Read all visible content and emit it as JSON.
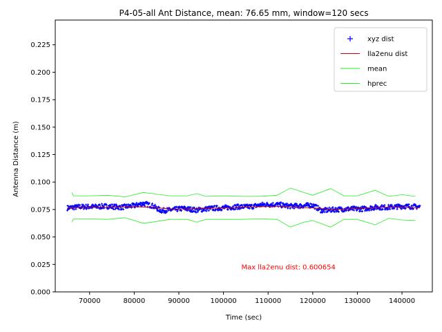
{
  "chart_data": {
    "type": "line",
    "title": "P4-05-all Ant Distance, mean: 76.65 mm, window=120 secs",
    "xlabel": "Time (sec)",
    "ylabel": "Antenna Distance (m)",
    "xlim": [
      62300,
      146800
    ],
    "ylim": [
      0.0,
      0.2475
    ],
    "xticks": [
      70000,
      80000,
      90000,
      100000,
      110000,
      120000,
      130000,
      140000
    ],
    "xtick_labels": [
      "70000",
      "80000",
      "90000",
      "100000",
      "110000",
      "120000",
      "130000",
      "140000"
    ],
    "yticks": [
      0.0,
      0.025,
      0.05,
      0.075,
      0.1,
      0.125,
      0.15,
      0.175,
      0.2,
      0.225
    ],
    "ytick_labels": [
      "0.000",
      "0.025",
      "0.050",
      "0.075",
      "0.100",
      "0.125",
      "0.150",
      "0.175",
      "0.200",
      "0.225"
    ],
    "grid": false,
    "legend_position": "top-right",
    "series": [
      {
        "name": "xyz dist",
        "style": "markers",
        "marker": "+",
        "color": "#0000ff",
        "x": [
          65000,
          68000,
          71000,
          74000,
          77000,
          80000,
          82000,
          84000,
          86000,
          88000,
          91000,
          94000,
          97000,
          100000,
          103000,
          106000,
          109000,
          112000,
          115000,
          118000,
          120000,
          122000,
          125000,
          128000,
          131000,
          134000,
          137000,
          140000,
          144000
        ],
        "values": [
          0.0765,
          0.0775,
          0.0775,
          0.078,
          0.077,
          0.0785,
          0.0805,
          0.0785,
          0.074,
          0.0745,
          0.076,
          0.0745,
          0.076,
          0.0765,
          0.0775,
          0.0775,
          0.0795,
          0.0795,
          0.078,
          0.0785,
          0.079,
          0.074,
          0.075,
          0.0755,
          0.0755,
          0.077,
          0.077,
          0.078,
          0.0775
        ]
      },
      {
        "name": "lla2enu dist",
        "style": "line",
        "color": "#cc0000",
        "x": [
          65000,
          70000,
          75000,
          80000,
          84000,
          88000,
          92000,
          96000,
          100000,
          104000,
          108000,
          112000,
          116000,
          120000,
          124000,
          128000,
          132000,
          136000,
          140000,
          144000
        ],
        "values": [
          0.0765,
          0.077,
          0.077,
          0.0775,
          0.077,
          0.0755,
          0.0755,
          0.076,
          0.0765,
          0.077,
          0.0775,
          0.078,
          0.077,
          0.0765,
          0.075,
          0.0755,
          0.0765,
          0.077,
          0.077,
          0.0765
        ]
      },
      {
        "name": "mean",
        "style": "line",
        "color": "#22ee22",
        "x": [
          66000,
          66400,
          70000,
          74000,
          78000,
          82000,
          84000,
          88000,
          92000,
          94000,
          96000,
          100000,
          104000,
          108000,
          112000,
          115000,
          118000,
          120000,
          124000,
          127000,
          130000,
          134000,
          137000,
          140000,
          143000
        ],
        "values": [
          0.0905,
          0.0875,
          0.0875,
          0.088,
          0.0865,
          0.0905,
          0.0895,
          0.0875,
          0.0875,
          0.0895,
          0.087,
          0.0875,
          0.087,
          0.087,
          0.088,
          0.0945,
          0.0905,
          0.088,
          0.094,
          0.0875,
          0.0875,
          0.0925,
          0.087,
          0.0885,
          0.087
        ]
      },
      {
        "name": "hprec",
        "style": "line",
        "color": "#22ee22",
        "x": [
          66000,
          66400,
          70000,
          74000,
          78000,
          82000,
          84000,
          88000,
          92000,
          94000,
          96000,
          100000,
          104000,
          108000,
          112000,
          115000,
          118000,
          120000,
          124000,
          127000,
          130000,
          134000,
          137000,
          140000,
          143000
        ],
        "values": [
          0.0635,
          0.0665,
          0.0665,
          0.066,
          0.0675,
          0.0625,
          0.0635,
          0.066,
          0.066,
          0.0635,
          0.066,
          0.066,
          0.066,
          0.0665,
          0.066,
          0.059,
          0.0635,
          0.065,
          0.059,
          0.066,
          0.066,
          0.061,
          0.067,
          0.0655,
          0.065
        ]
      }
    ],
    "annotations": [
      {
        "text": "Max lla2enu dist: 0.600654",
        "x": 104000,
        "y": 0.0205,
        "color": "#ff0000"
      }
    ]
  }
}
